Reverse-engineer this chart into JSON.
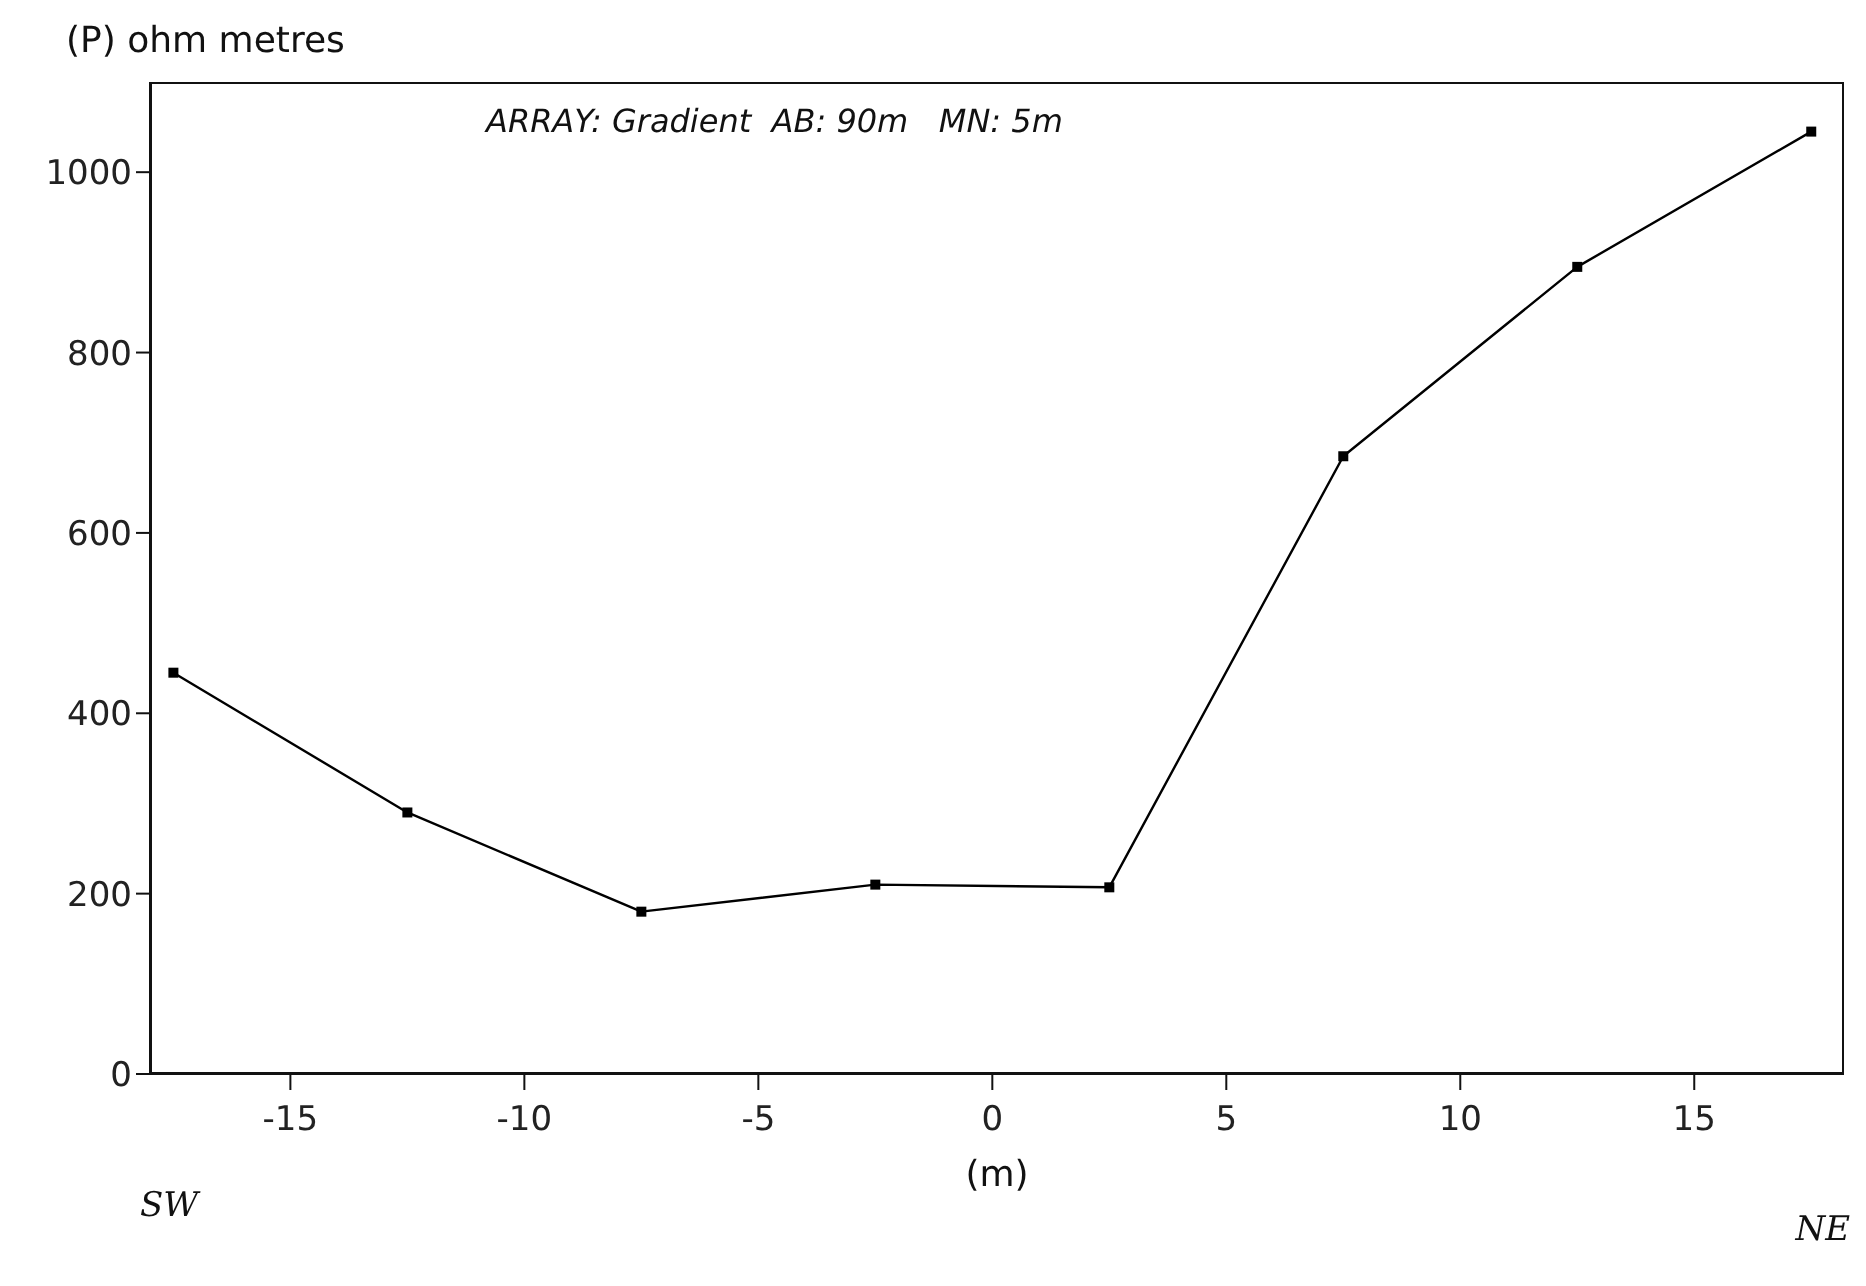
{
  "chart_data": {
    "type": "line",
    "ylabel": "(P) ohm metres",
    "xlabel": "(m)",
    "annotations": [
      "ARRAY: Gradient  AB: 90m   MN: 5m",
      "SW",
      "NE"
    ],
    "x": [
      -17.5,
      -12.5,
      -7.5,
      -2.5,
      2.5,
      7.5,
      12.5,
      17.5
    ],
    "series": [
      {
        "color": "#000000",
        "values": [
          445,
          290,
          180,
          210,
          207,
          685,
          895,
          1045
        ]
      }
    ],
    "xlim": [
      -18,
      18.2
    ],
    "xticks": [
      -15,
      -10,
      -5,
      0,
      5,
      10,
      15
    ],
    "ylim": [
      0,
      1100
    ],
    "yticks": [
      0,
      200,
      400,
      600,
      800,
      1000
    ],
    "marker": "square",
    "line_style": "solid",
    "grid": false
  }
}
